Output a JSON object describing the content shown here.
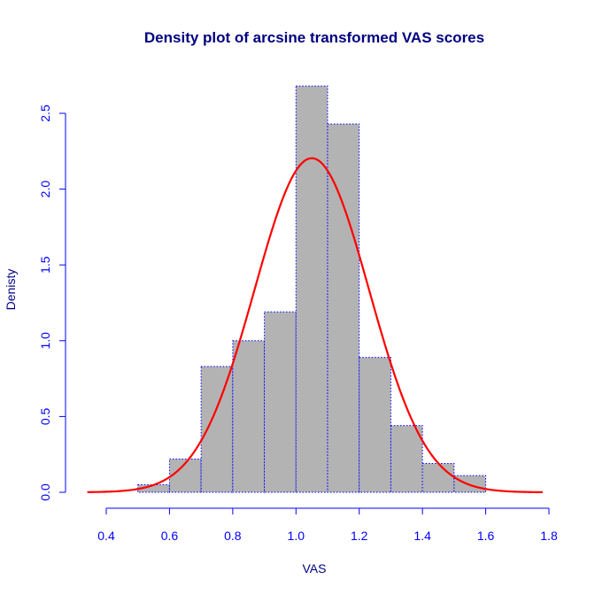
{
  "chart_data": {
    "type": "histogram",
    "title": "Density plot of arcsine transformed VAS scores",
    "xlabel": "VAS",
    "ylabel": "Denisty",
    "xlim": [
      0.4,
      1.8
    ],
    "ylim": [
      0,
      2.5
    ],
    "x_ticks": [
      "0.4",
      "0.6",
      "0.8",
      "1.0",
      "1.2",
      "1.4",
      "1.6",
      "1.8"
    ],
    "y_ticks": [
      "0.0",
      "0.5",
      "1.0",
      "1.5",
      "2.0",
      "2.5"
    ],
    "bins": [
      {
        "x0": 0.5,
        "x1": 0.6,
        "density": 0.05
      },
      {
        "x0": 0.6,
        "x1": 0.7,
        "density": 0.22
      },
      {
        "x0": 0.7,
        "x1": 0.8,
        "density": 0.83
      },
      {
        "x0": 0.8,
        "x1": 0.9,
        "density": 1.0
      },
      {
        "x0": 0.9,
        "x1": 1.0,
        "density": 1.19
      },
      {
        "x0": 1.0,
        "x1": 1.1,
        "density": 2.68
      },
      {
        "x0": 1.1,
        "x1": 1.2,
        "density": 2.43
      },
      {
        "x0": 1.2,
        "x1": 1.3,
        "density": 0.89
      },
      {
        "x0": 1.3,
        "x1": 1.4,
        "density": 0.44
      },
      {
        "x0": 1.4,
        "x1": 1.5,
        "density": 0.19
      },
      {
        "x0": 1.5,
        "x1": 1.6,
        "density": 0.11
      }
    ],
    "density_curve": {
      "type": "normal",
      "mean": 1.05,
      "sd": 0.181,
      "x_range": [
        0.34,
        1.78
      ]
    },
    "colors": {
      "bars": "#b3b3b3",
      "bar_border": "#0000ff",
      "curve": "#ff0000",
      "axes": "#0000ff",
      "title": "#000080",
      "labels": "#000080"
    }
  }
}
